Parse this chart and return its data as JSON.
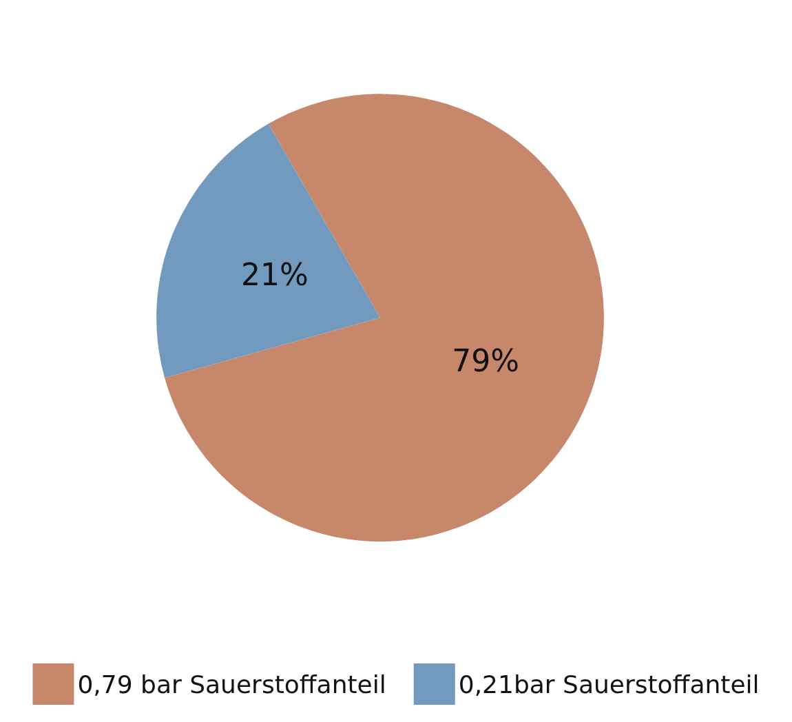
{
  "chart_data": {
    "type": "pie",
    "categories": [
      "0,79 bar Sauerstoffanteil",
      "0,21bar Sauerstoffanteil"
    ],
    "values": [
      79,
      21
    ],
    "colors": [
      "#c6876a",
      "#729abf"
    ],
    "value_labels": [
      "79%",
      "21%"
    ],
    "legend": "bottom"
  }
}
